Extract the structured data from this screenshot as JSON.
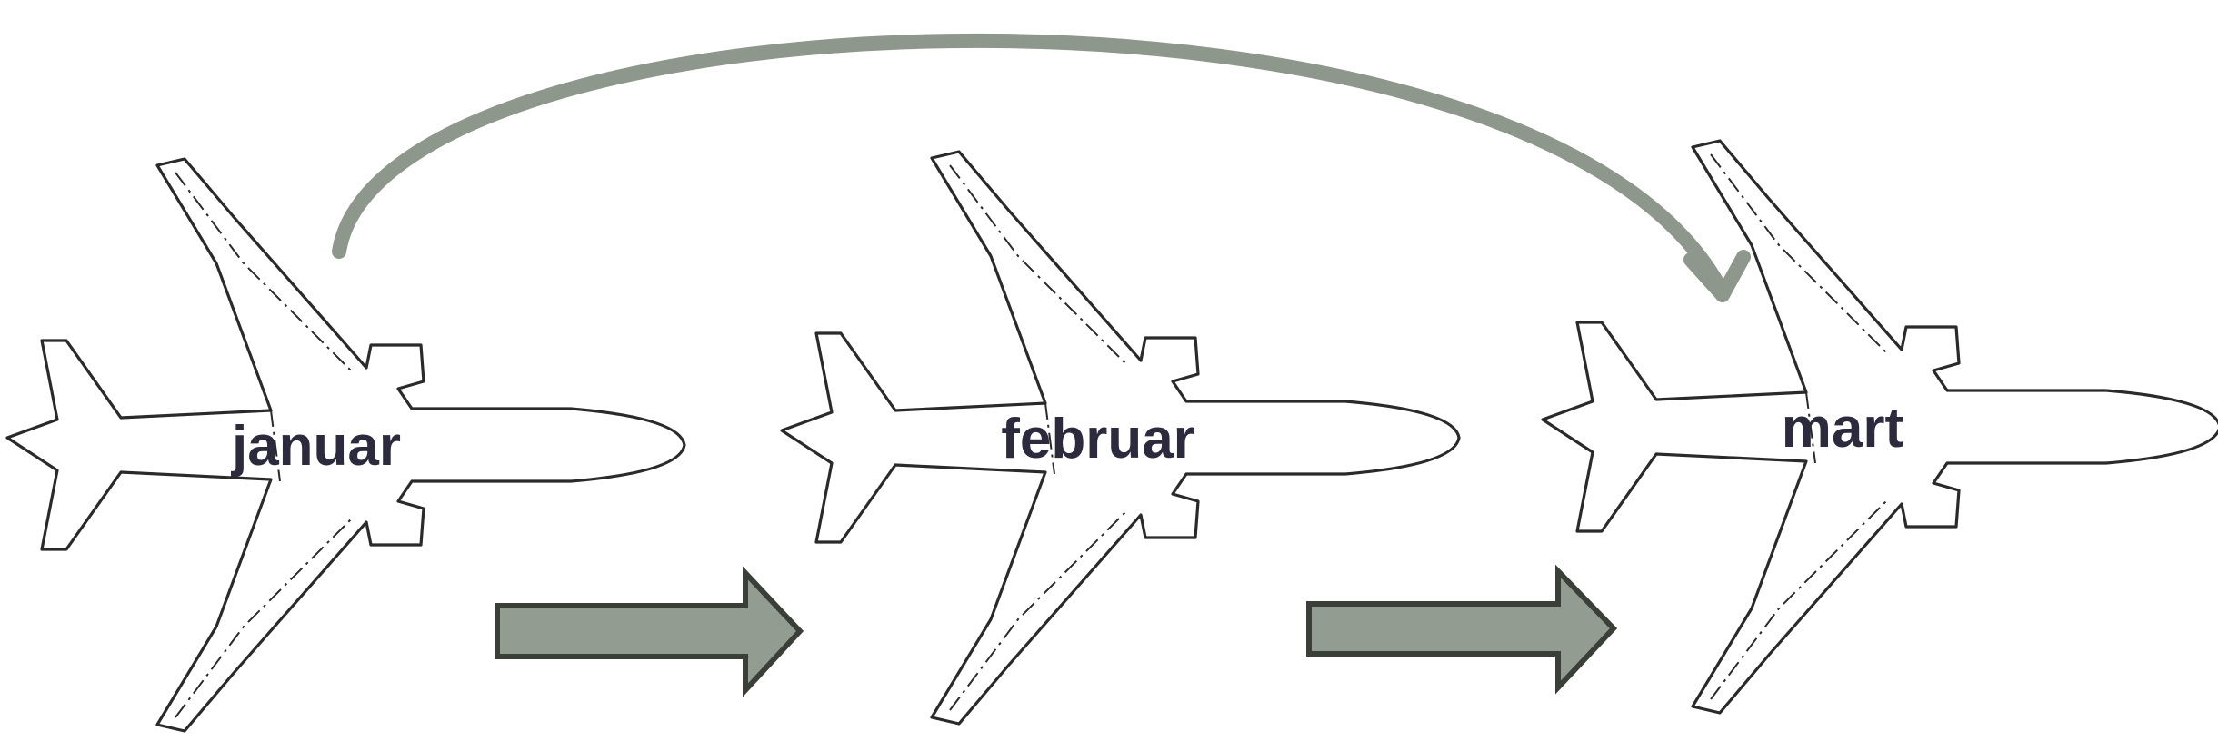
{
  "planes": [
    {
      "label": "januar"
    },
    {
      "label": "februar"
    },
    {
      "label": "mart"
    }
  ],
  "colors": {
    "arrow_fill": "#939c91",
    "arrow_stroke": "#3a4038",
    "curve": "#8e978c",
    "label": "#2c2b3d",
    "outline": "#2a2a2a"
  }
}
